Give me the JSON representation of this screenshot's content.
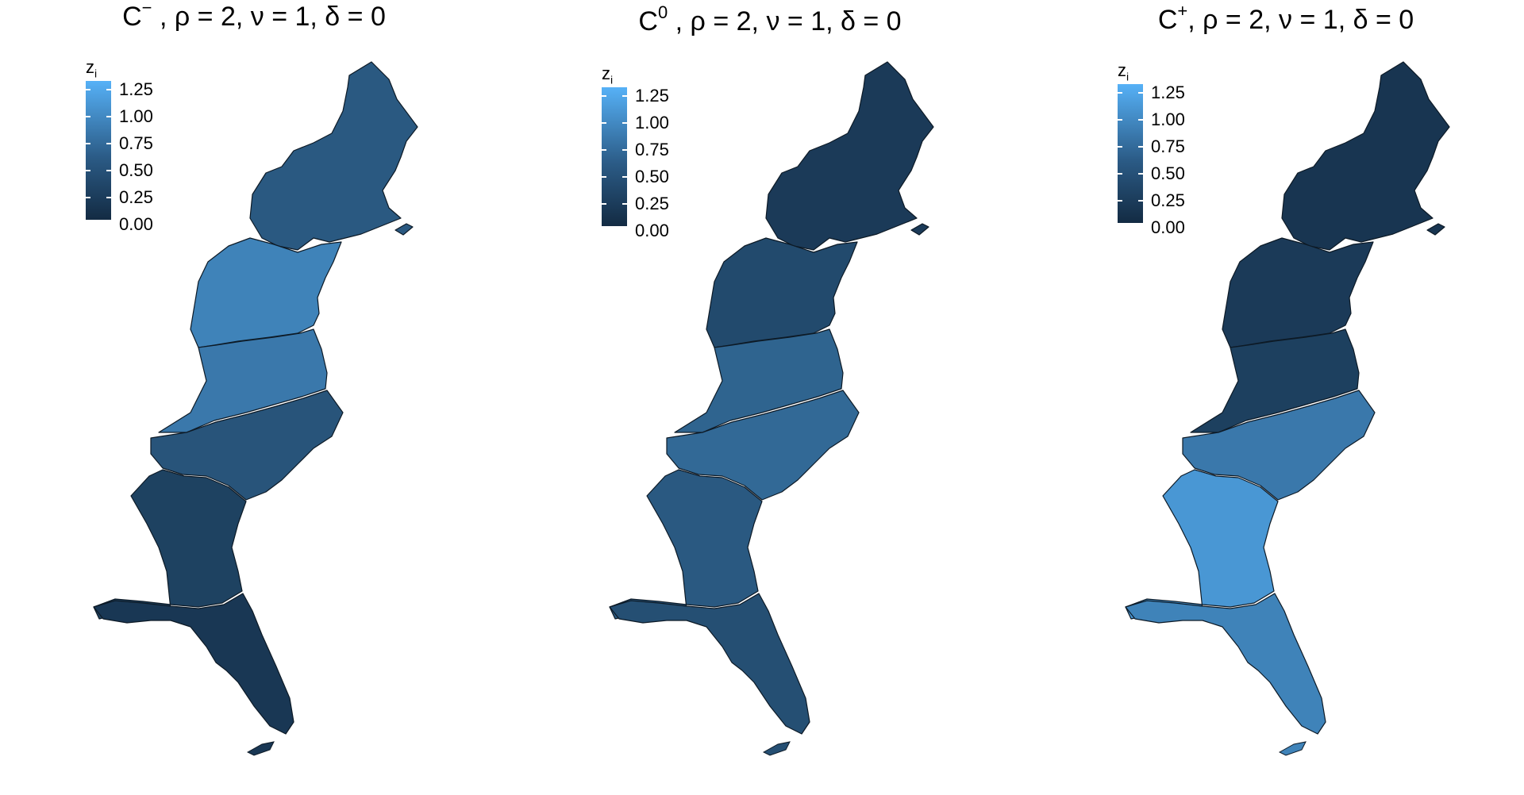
{
  "figure": {
    "panels": [
      {
        "title_main": "C",
        "title_sup": "−",
        "title_rest": " , ρ = 2, ν = 1, δ = 0",
        "legend_title_main": "z",
        "legend_title_sub": "i",
        "legend_labels": [
          "1.25",
          "1.00",
          "0.75",
          "0.50",
          "0.25",
          "0.00"
        ],
        "region_values": {
          "northeast": 0.45,
          "mid_atlantic": 0.85,
          "virginia": 0.75,
          "carolinas": 0.4,
          "georgia": 0.22,
          "florida": 0.12
        }
      },
      {
        "title_main": "C",
        "title_sup": "0",
        "title_rest": " , ρ = 2, ν = 1, δ = 0",
        "legend_title_main": "z",
        "legend_title_sub": "i",
        "legend_labels": [
          "1.25",
          "1.00",
          "0.75",
          "0.50",
          "0.25",
          "0.00"
        ],
        "region_values": {
          "northeast": 0.15,
          "mid_atlantic": 0.3,
          "virginia": 0.55,
          "carolinas": 0.6,
          "georgia": 0.45,
          "florida": 0.35
        }
      },
      {
        "title_main": "C",
        "title_sup": "+",
        "title_rest": ", ρ = 2, ν = 1, δ = 0",
        "legend_title_main": "z",
        "legend_title_sub": "i",
        "legend_labels": [
          "1.25",
          "1.00",
          "0.75",
          "0.50",
          "0.25",
          "0.00"
        ],
        "region_values": {
          "northeast": 0.1,
          "mid_atlantic": 0.15,
          "virginia": 0.2,
          "carolinas": 0.75,
          "georgia": 1.05,
          "florida": 0.85
        }
      }
    ],
    "color_scale": {
      "low": "#132b43",
      "high": "#56b1f7",
      "min": 0,
      "max": 1.3
    }
  }
}
